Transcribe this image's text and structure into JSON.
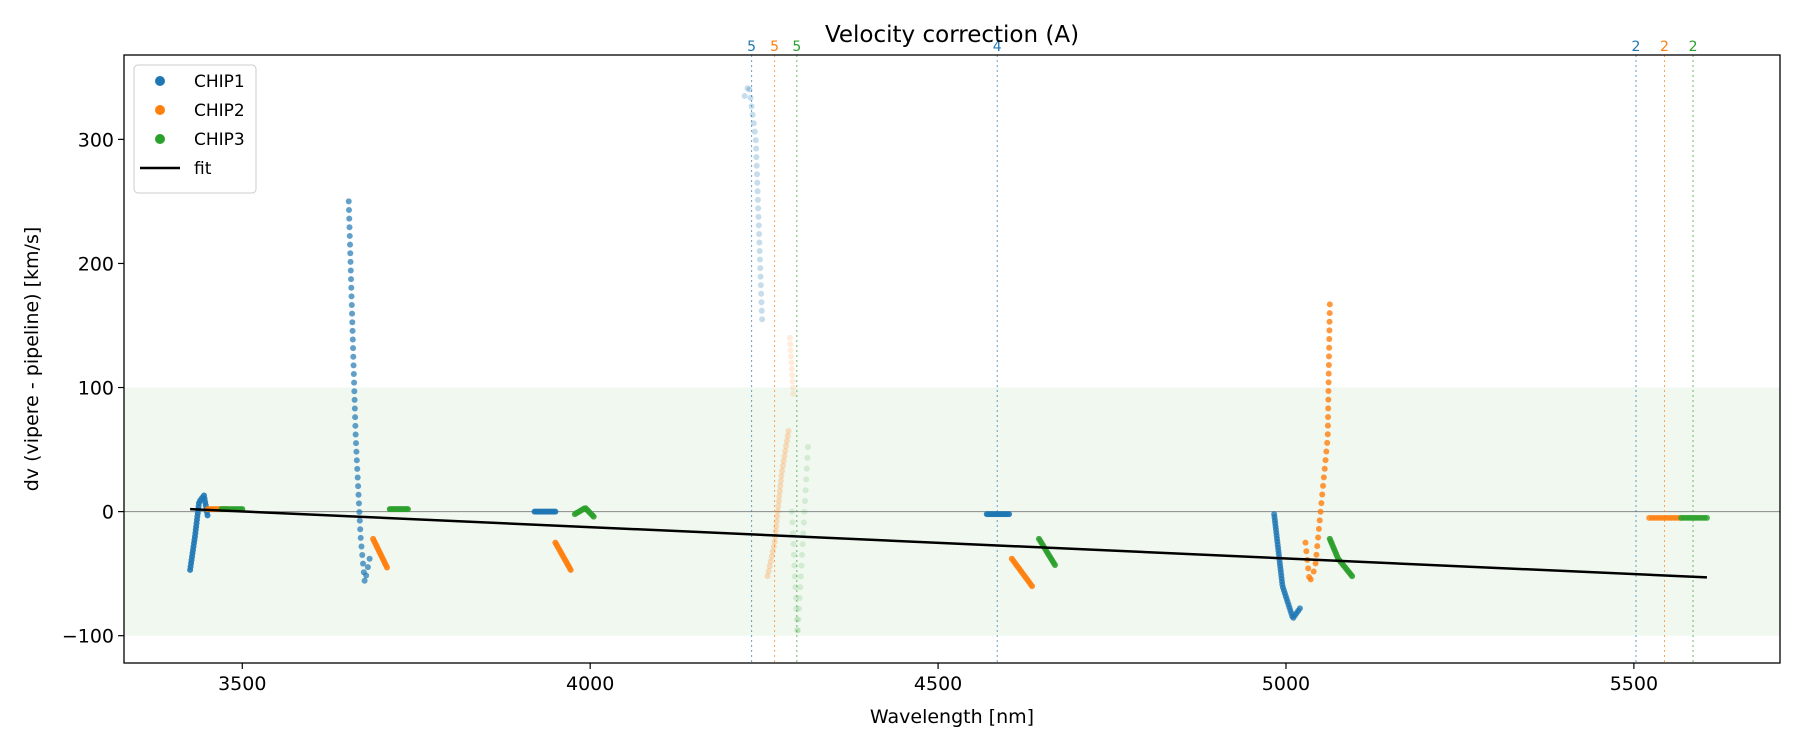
{
  "chart_data": {
    "type": "scatter",
    "title": "Velocity correction (A)",
    "xlabel": "Wavelength [nm]",
    "ylabel": "dv (vipere - pipeline) [km/s]",
    "xlim": [
      3330,
      5710
    ],
    "ylim": [
      -122,
      368
    ],
    "xticks": [
      3500,
      4000,
      4500,
      5000,
      5500
    ],
    "yticks": [
      -100,
      0,
      100,
      200,
      300
    ],
    "ytick_labels": [
      "−100",
      "0",
      "100",
      "200",
      "300"
    ],
    "grid": false,
    "legend_position": "top-left",
    "band": {
      "y0": -100,
      "y1": 100,
      "color": "#2ca02c"
    },
    "zero_line": 0,
    "colors": {
      "CHIP1": "#1f77b4",
      "CHIP2": "#ff7f0e",
      "CHIP3": "#2ca02c",
      "fit": "#000000"
    },
    "legend": [
      {
        "label": "CHIP1",
        "kind": "point",
        "color": "#1f77b4"
      },
      {
        "label": "CHIP2",
        "kind": "point",
        "color": "#ff7f0e"
      },
      {
        "label": "CHIP3",
        "kind": "point",
        "color": "#2ca02c"
      },
      {
        "label": "fit",
        "kind": "line",
        "color": "#000000"
      }
    ],
    "fit": {
      "x": [
        3425,
        5605
      ],
      "y": [
        2,
        -53
      ]
    },
    "order_markers": [
      {
        "x": 4232,
        "label": "5",
        "color": "#1f77b4"
      },
      {
        "x": 4265,
        "label": "5",
        "color": "#ff7f0e"
      },
      {
        "x": 4297,
        "label": "5",
        "color": "#2ca02c"
      },
      {
        "x": 4585,
        "label": "4",
        "color": "#1f77b4"
      },
      {
        "x": 5503,
        "label": "2",
        "color": "#1f77b4"
      },
      {
        "x": 5544,
        "label": "2",
        "color": "#ff7f0e"
      },
      {
        "x": 5585,
        "label": "2",
        "color": "#2ca02c"
      }
    ],
    "segments": [
      {
        "series": "CHIP1",
        "alpha": 0.9,
        "n": 30,
        "knots": [
          [
            3425,
            -47
          ],
          [
            3432,
            -20
          ],
          [
            3438,
            8
          ],
          [
            3445,
            13
          ],
          [
            3450,
            -3
          ]
        ]
      },
      {
        "series": "CHIP2",
        "alpha": 0.9,
        "n": 12,
        "knots": [
          [
            3450,
            2
          ],
          [
            3478,
            2
          ]
        ]
      },
      {
        "series": "CHIP3",
        "alpha": 0.9,
        "n": 12,
        "knots": [
          [
            3470,
            2
          ],
          [
            3500,
            2
          ]
        ]
      },
      {
        "series": "CHIP1",
        "alpha": 0.7,
        "n": 48,
        "knots": [
          [
            3653,
            250
          ],
          [
            3663,
            60
          ],
          [
            3670,
            -20
          ],
          [
            3676,
            -57
          ],
          [
            3683,
            -38
          ]
        ]
      },
      {
        "series": "CHIP2",
        "alpha": 0.9,
        "n": 14,
        "knots": [
          [
            3688,
            -22
          ],
          [
            3708,
            -45
          ]
        ]
      },
      {
        "series": "CHIP3",
        "alpha": 0.9,
        "n": 14,
        "knots": [
          [
            3712,
            2
          ],
          [
            3738,
            2
          ]
        ]
      },
      {
        "series": "CHIP1",
        "alpha": 0.9,
        "n": 14,
        "knots": [
          [
            3920,
            0
          ],
          [
            3950,
            0
          ]
        ]
      },
      {
        "series": "CHIP2",
        "alpha": 0.9,
        "n": 14,
        "knots": [
          [
            3950,
            -25
          ],
          [
            3972,
            -47
          ]
        ]
      },
      {
        "series": "CHIP3",
        "alpha": 0.9,
        "n": 14,
        "knots": [
          [
            3978,
            -2
          ],
          [
            3993,
            3
          ],
          [
            4005,
            -4
          ]
        ]
      },
      {
        "series": "CHIP1",
        "alpha": 0.25,
        "n": 30,
        "knots": [
          [
            4222,
            335
          ],
          [
            4228,
            344
          ],
          [
            4238,
            300
          ],
          [
            4247,
            155
          ]
        ]
      },
      {
        "series": "CHIP2",
        "alpha": 0.25,
        "n": 30,
        "knots": [
          [
            4255,
            -52
          ],
          [
            4265,
            -25
          ],
          [
            4275,
            30
          ],
          [
            4285,
            65
          ]
        ]
      },
      {
        "series": "CHIP2",
        "alpha": 0.15,
        "n": 10,
        "knots": [
          [
            4287,
            140
          ],
          [
            4292,
            95
          ]
        ]
      },
      {
        "series": "CHIP3",
        "alpha": 0.15,
        "n": 30,
        "knots": [
          [
            4290,
            0
          ],
          [
            4298,
            -100
          ],
          [
            4305,
            -30
          ],
          [
            4313,
            52
          ]
        ]
      },
      {
        "series": "CHIP1",
        "alpha": 0.9,
        "n": 14,
        "knots": [
          [
            4570,
            -2
          ],
          [
            4602,
            -2
          ]
        ]
      },
      {
        "series": "CHIP2",
        "alpha": 0.9,
        "n": 14,
        "knots": [
          [
            4606,
            -38
          ],
          [
            4635,
            -60
          ]
        ]
      },
      {
        "series": "CHIP3",
        "alpha": 0.9,
        "n": 14,
        "knots": [
          [
            4645,
            -22
          ],
          [
            4668,
            -43
          ]
        ]
      },
      {
        "series": "CHIP1",
        "alpha": 0.8,
        "n": 40,
        "knots": [
          [
            4983,
            -2
          ],
          [
            4995,
            -60
          ],
          [
            5010,
            -86
          ],
          [
            5020,
            -78
          ]
        ]
      },
      {
        "series": "CHIP2",
        "alpha": 0.8,
        "n": 38,
        "knots": [
          [
            5028,
            -25
          ],
          [
            5034,
            -57
          ],
          [
            5042,
            -45
          ],
          [
            5060,
            60
          ],
          [
            5063,
            167
          ]
        ]
      },
      {
        "series": "CHIP3",
        "alpha": 0.9,
        "n": 20,
        "knots": [
          [
            5063,
            -22
          ],
          [
            5075,
            -38
          ],
          [
            5095,
            -52
          ]
        ]
      },
      {
        "series": "CHIP2",
        "alpha": 0.8,
        "n": 12,
        "knots": [
          [
            5522,
            -5
          ],
          [
            5566,
            -5
          ]
        ]
      },
      {
        "series": "CHIP3",
        "alpha": 0.8,
        "n": 12,
        "knots": [
          [
            5568,
            -5
          ],
          [
            5605,
            -5
          ]
        ]
      }
    ]
  }
}
